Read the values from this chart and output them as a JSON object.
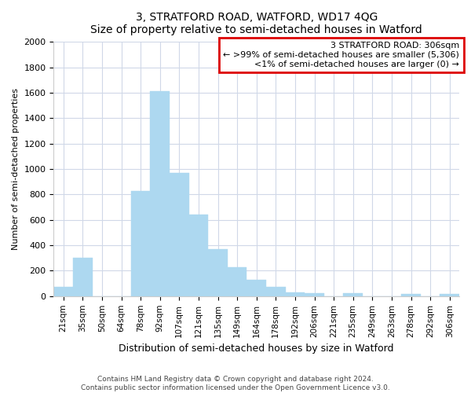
{
  "title": "3, STRATFORD ROAD, WATFORD, WD17 4QG",
  "subtitle": "Size of property relative to semi-detached houses in Watford",
  "xlabel": "Distribution of semi-detached houses by size in Watford",
  "ylabel": "Number of semi-detached properties",
  "categories": [
    "21sqm",
    "35sqm",
    "50sqm",
    "64sqm",
    "78sqm",
    "92sqm",
    "107sqm",
    "121sqm",
    "135sqm",
    "149sqm",
    "164sqm",
    "178sqm",
    "192sqm",
    "206sqm",
    "221sqm",
    "235sqm",
    "249sqm",
    "263sqm",
    "278sqm",
    "292sqm",
    "306sqm"
  ],
  "values": [
    70,
    300,
    0,
    0,
    830,
    1610,
    970,
    640,
    370,
    230,
    130,
    70,
    30,
    25,
    0,
    25,
    0,
    0,
    15,
    0,
    15
  ],
  "bar_color": "#add8f0",
  "bar_edge_color": "#add8f0",
  "annotation_title": "3 STRATFORD ROAD: 306sqm",
  "annotation_line1": "← >99% of semi-detached houses are smaller (5,306)",
  "annotation_line2": "<1% of semi-detached houses are larger (0) →",
  "annotation_box_facecolor": "#ffffff",
  "annotation_box_edgecolor": "#dd0000",
  "ylim": [
    0,
    2000
  ],
  "yticks": [
    0,
    200,
    400,
    600,
    800,
    1000,
    1200,
    1400,
    1600,
    1800,
    2000
  ],
  "grid_color": "#d0d8e8",
  "bg_color": "#ffffff",
  "footer_line1": "Contains HM Land Registry data © Crown copyright and database right 2024.",
  "footer_line2": "Contains public sector information licensed under the Open Government Licence v3.0."
}
